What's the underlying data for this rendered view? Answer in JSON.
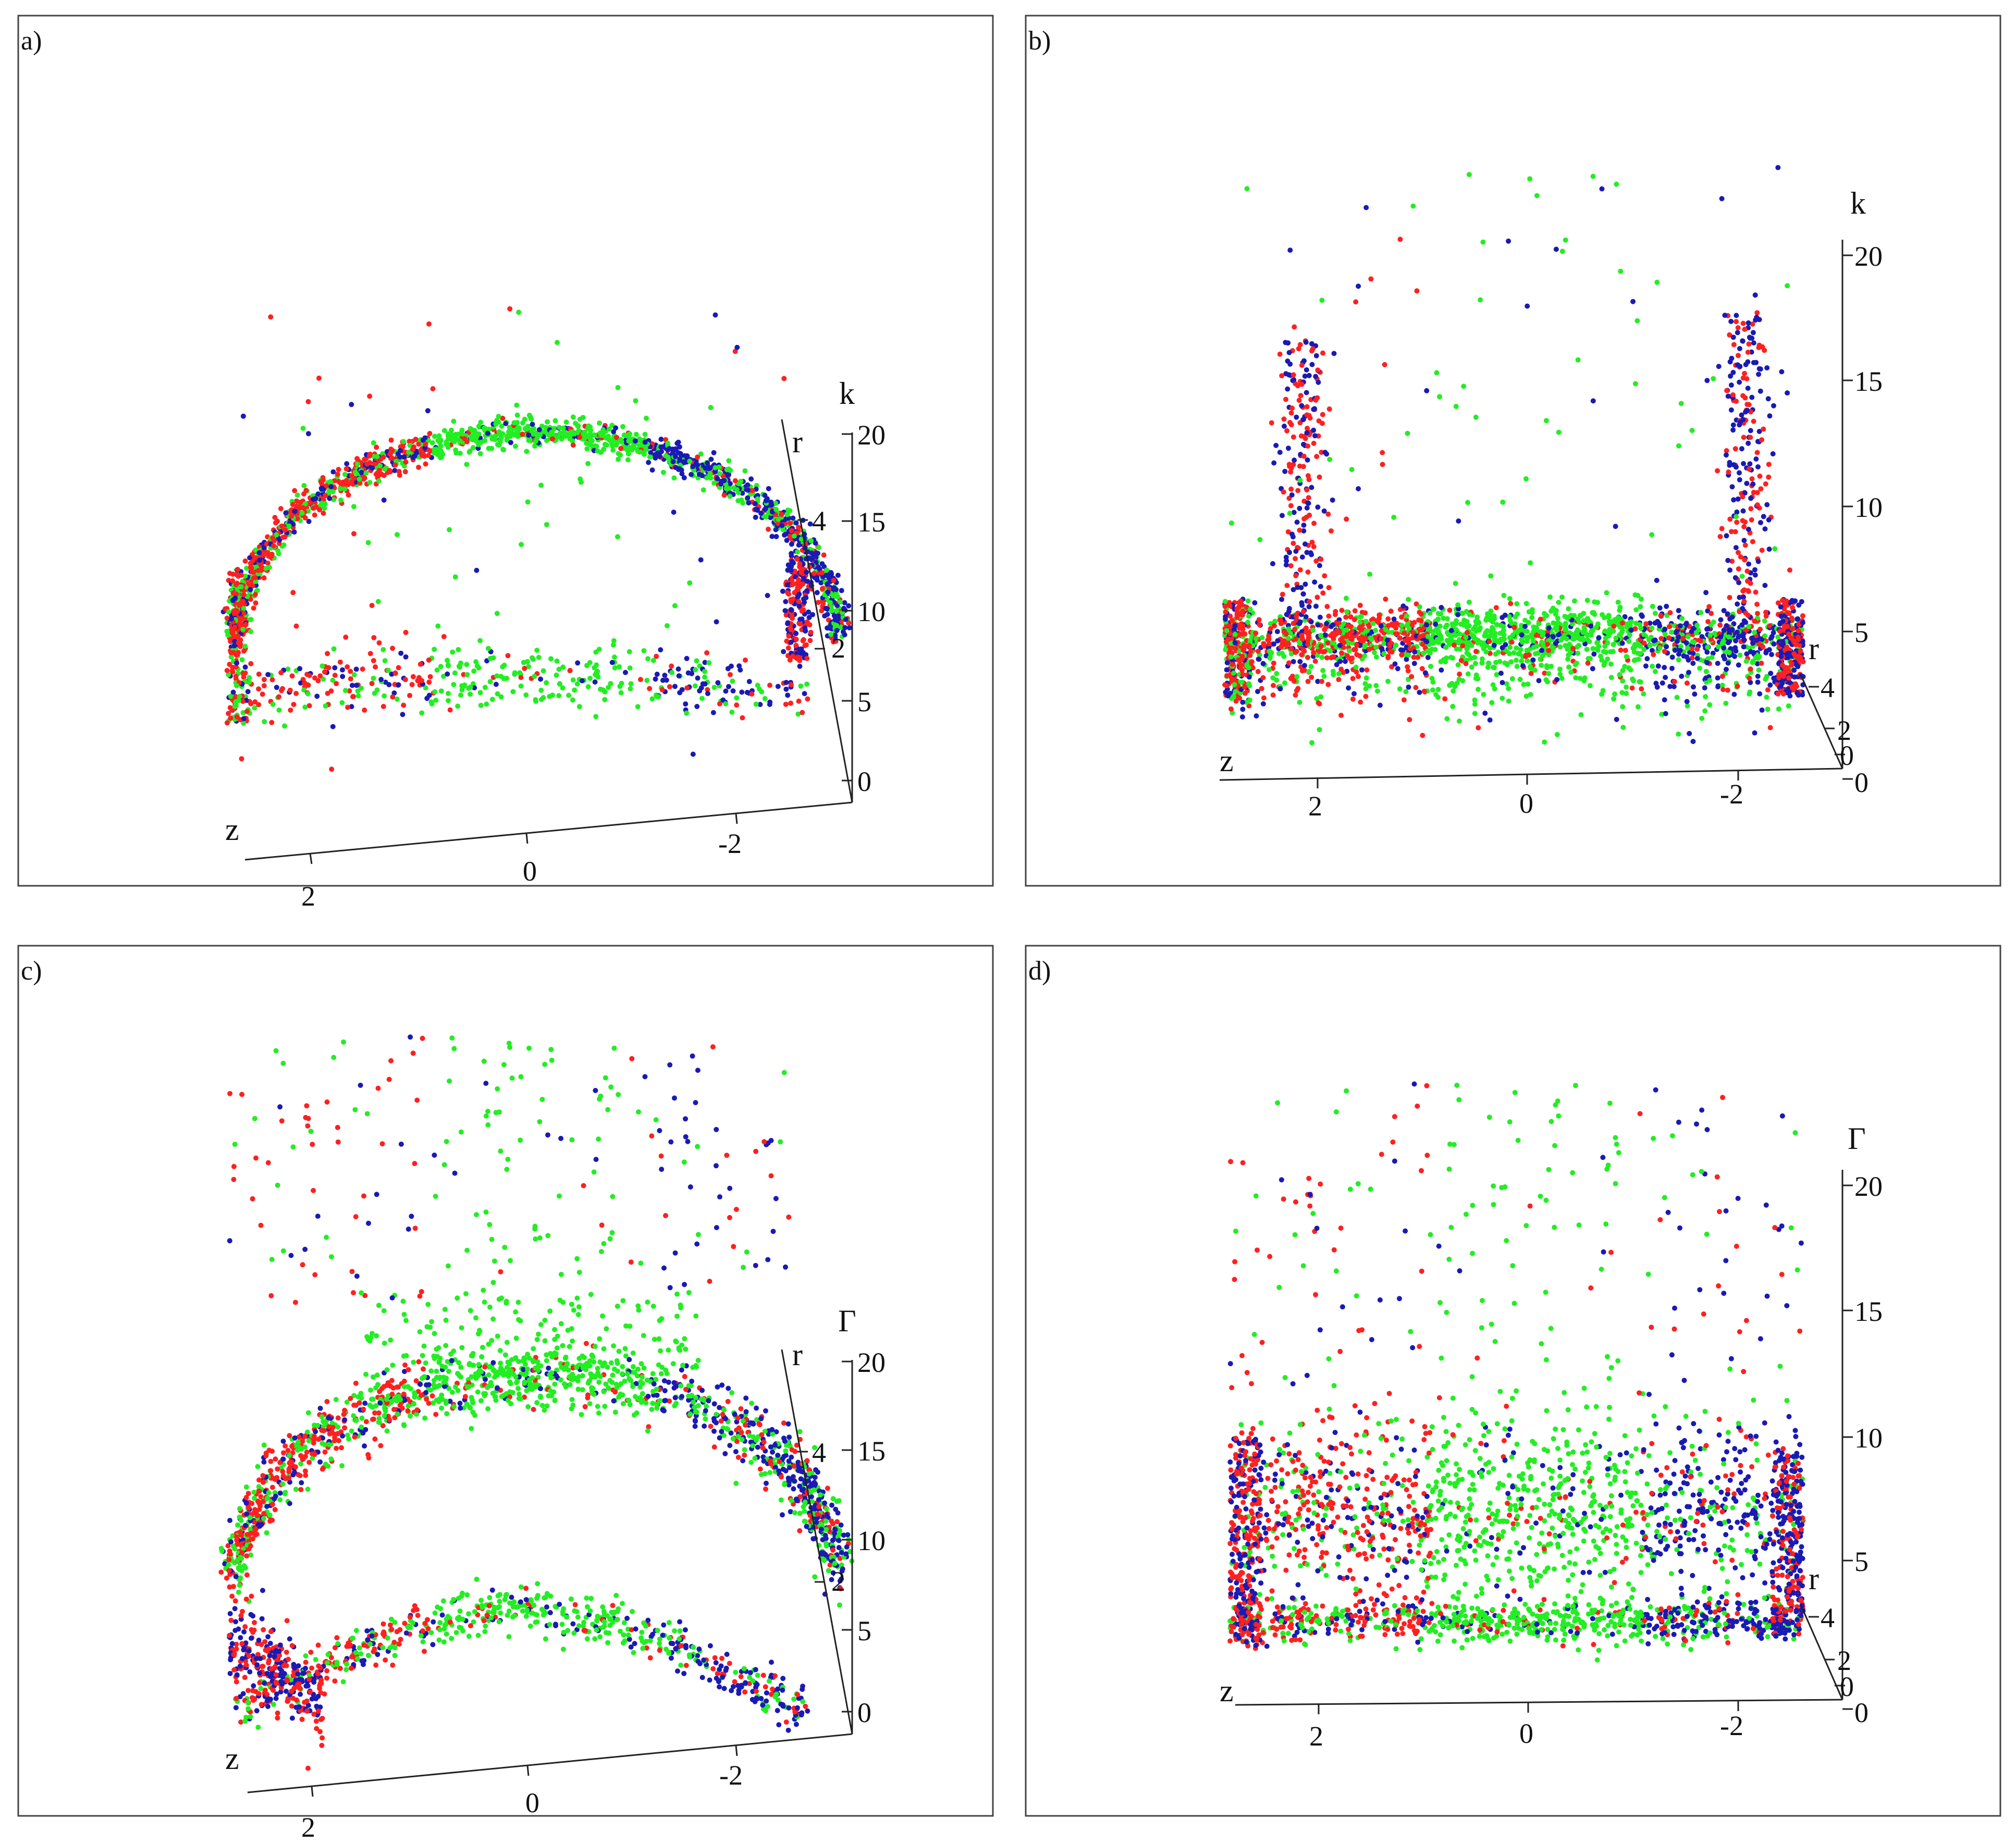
{
  "colors": {
    "red": "#ff2020",
    "green": "#22ee22",
    "blue": "#1a1ab4"
  },
  "chart_data": [
    {
      "panel_label": "a)",
      "type": "scatter",
      "view": "oblique",
      "zlabel": "k",
      "rlabel": "r",
      "xlabel": "z",
      "x_ticks": [
        "2",
        "0",
        "-2"
      ],
      "vertical_ticks": [
        "0",
        "5",
        "10",
        "15",
        "20"
      ],
      "r_ticks": [
        "2",
        "4"
      ],
      "vertical_range": [
        0,
        20
      ],
      "z_range": [
        3,
        -3
      ],
      "series_colors": [
        "red",
        "green",
        "blue"
      ],
      "structure": "points along a curved arch (upper branch around k≈18–19 at z≈0) and a lower band around k≈4–6; red on the z>0 side, blue on the z<0 side, green spanning the top"
    },
    {
      "panel_label": "b)",
      "type": "scatter",
      "view": "side",
      "zlabel": "k",
      "rlabel": "r",
      "xlabel": "z",
      "x_ticks": [
        "2",
        "0",
        "-2"
      ],
      "vertical_ticks": [
        "0",
        "5",
        "10",
        "15",
        "20"
      ],
      "r_ticks": [
        "0",
        "2",
        "4"
      ],
      "vertical_range": [
        0,
        20
      ],
      "z_range": [
        3,
        -3
      ],
      "series_colors": [
        "red",
        "green",
        "blue"
      ],
      "structure": "dense band around k≈5 across z, spikes reaching k≈15–18 near z≈2.2 and z≈-2.2, scattered outliers up to k≈20"
    },
    {
      "panel_label": "c)",
      "type": "scatter",
      "view": "oblique",
      "zlabel": "Γ",
      "rlabel": "r",
      "xlabel": "z",
      "x_ticks": [
        "2",
        "0",
        "-2"
      ],
      "vertical_ticks": [
        "0",
        "5",
        "10",
        "15",
        "20"
      ],
      "r_ticks": [
        "2",
        "4"
      ],
      "vertical_range": [
        0,
        20
      ],
      "z_range": [
        3,
        -3
      ],
      "series_colors": [
        "red",
        "green",
        "blue"
      ],
      "structure": "horseshoe-shaped cloud: broad upper green band around Γ≈18–20, dense lower curved band around Γ≈4–7, many scattered points above"
    },
    {
      "panel_label": "d)",
      "type": "scatter",
      "view": "side",
      "zlabel": "Γ",
      "rlabel": "r",
      "xlabel": "z",
      "x_ticks": [
        "2",
        "0",
        "-2"
      ],
      "vertical_ticks": [
        "0",
        "5",
        "10",
        "15",
        "20"
      ],
      "r_ticks": [
        "0",
        "2",
        "4"
      ],
      "vertical_range": [
        0,
        20
      ],
      "z_range": [
        3,
        -3
      ],
      "series_colors": [
        "red",
        "green",
        "blue"
      ],
      "structure": "dense lower band near Γ≈2–3, wide cloud around Γ≈5–10, sparse points up to Γ≈20"
    }
  ]
}
